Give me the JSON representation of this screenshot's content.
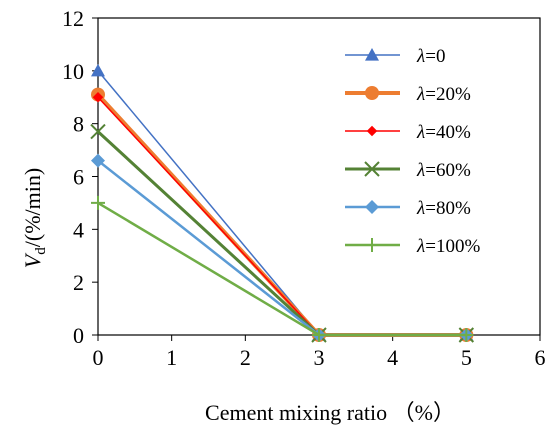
{
  "chart_data": {
    "type": "line",
    "xlabel": "Cement mixing ratio （%）",
    "ylabel_main": "V",
    "ylabel_sub": "d",
    "ylabel_rest": "/(%/min)",
    "xlim": [
      0,
      6
    ],
    "ylim": [
      0,
      12
    ],
    "xticks": [
      "0",
      "1",
      "2",
      "3",
      "4",
      "5",
      "6"
    ],
    "yticks": [
      "0",
      "2",
      "4",
      "6",
      "8",
      "10",
      "12"
    ],
    "grid": false,
    "legend_position": "top-right",
    "series": [
      {
        "name_prefix": "λ",
        "name_rest": "=0",
        "color": "#4472C4",
        "marker": "triangle",
        "line_width": 1.5,
        "x": [
          0,
          3,
          5
        ],
        "y": [
          10.0,
          0,
          0
        ]
      },
      {
        "name_prefix": "λ",
        "name_rest": "=20%",
        "color": "#ED7D31",
        "marker": "circle",
        "line_width": 4,
        "x": [
          0,
          3,
          5
        ],
        "y": [
          9.1,
          0,
          0
        ]
      },
      {
        "name_prefix": "λ",
        "name_rest": "=40%",
        "color": "#FF0000",
        "marker": "diamond-small",
        "line_width": 1.5,
        "x": [
          0,
          3,
          5
        ],
        "y": [
          9.0,
          0,
          0
        ]
      },
      {
        "name_prefix": "λ",
        "name_rest": "=60%",
        "color": "#548235",
        "marker": "x",
        "line_width": 3,
        "x": [
          0,
          3,
          5
        ],
        "y": [
          7.7,
          0,
          0
        ]
      },
      {
        "name_prefix": "λ",
        "name_rest": "=80%",
        "color": "#5B9BD5",
        "marker": "diamond",
        "line_width": 2.5,
        "x": [
          0,
          3,
          5
        ],
        "y": [
          6.6,
          0,
          0
        ]
      },
      {
        "name_prefix": "λ",
        "name_rest": "=100%",
        "color": "#70AD47",
        "marker": "plus",
        "line_width": 2.5,
        "x": [
          0,
          3,
          5
        ],
        "y": [
          5.0,
          0,
          0
        ]
      }
    ]
  }
}
